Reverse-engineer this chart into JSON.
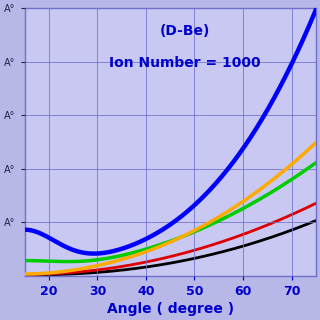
{
  "title_line1": "(D-Be)",
  "title_line2": "Ion Number = 1000",
  "xlabel": "Angle ( degree )",
  "background_color": "#b8b8e8",
  "plot_bg_color": "#c8c8f2",
  "grid_color": "#7070cc",
  "title_color": "#0000cc",
  "xlabel_color": "#0000cc",
  "xmin": 15,
  "xmax": 75,
  "ylim_max": 3.2,
  "ytick_count": 5,
  "lines": {
    "blue": {
      "color": "#0000ff",
      "lw": 3.2
    },
    "orange": {
      "color": "#ffaa00",
      "lw": 2.5
    },
    "green": {
      "color": "#00cc00",
      "lw": 2.5
    },
    "red": {
      "color": "#dd0000",
      "lw": 2.0
    },
    "black": {
      "color": "#000000",
      "lw": 2.0
    }
  }
}
